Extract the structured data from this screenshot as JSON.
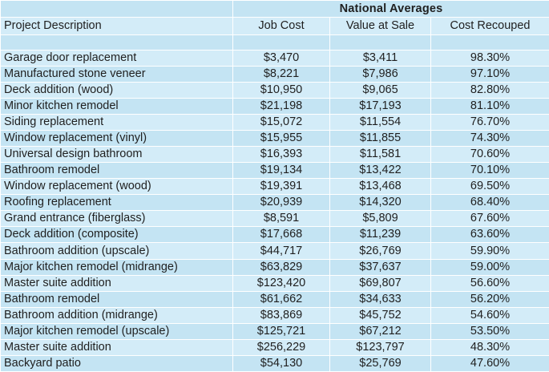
{
  "header": {
    "group_title": "National Averages",
    "columns": {
      "project": "Project Description",
      "job_cost": "Job Cost",
      "value_at_sale": "Value at Sale",
      "cost_recouped": "Cost Recouped"
    }
  },
  "rows": [
    {
      "project": "Garage door replacement",
      "job_cost": "$3,470",
      "value_at_sale": "$3,411",
      "cost_recouped": "98.30%"
    },
    {
      "project": "Manufactured stone veneer",
      "job_cost": "$8,221",
      "value_at_sale": "$7,986",
      "cost_recouped": "97.10%"
    },
    {
      "project": "Deck addition (wood)",
      "job_cost": "$10,950",
      "value_at_sale": "$9,065",
      "cost_recouped": "82.80%"
    },
    {
      "project": "Minor kitchen remodel",
      "job_cost": "$21,198",
      "value_at_sale": "$17,193",
      "cost_recouped": "81.10%"
    },
    {
      "project": "Siding replacement",
      "job_cost": "$15,072",
      "value_at_sale": "$11,554",
      "cost_recouped": "76.70%"
    },
    {
      "project": "Window replacement (vinyl)",
      "job_cost": "$15,955",
      "value_at_sale": "$11,855",
      "cost_recouped": "74.30%"
    },
    {
      "project": "Universal design bathroom",
      "job_cost": "$16,393",
      "value_at_sale": "$11,581",
      "cost_recouped": "70.60%"
    },
    {
      "project": "Bathroom remodel",
      "job_cost": "$19,134",
      "value_at_sale": "$13,422",
      "cost_recouped": "70.10%"
    },
    {
      "project": "Window replacement (wood)",
      "job_cost": "$19,391",
      "value_at_sale": "$13,468",
      "cost_recouped": "69.50%"
    },
    {
      "project": "Roofing replacement",
      "job_cost": "$20,939",
      "value_at_sale": "$14,320",
      "cost_recouped": "68.40%"
    },
    {
      "project": "Grand entrance (fiberglass)",
      "job_cost": "$8,591",
      "value_at_sale": "$5,809",
      "cost_recouped": "67.60%"
    },
    {
      "project": "Deck addition (composite)",
      "job_cost": "$17,668",
      "value_at_sale": "$11,239",
      "cost_recouped": "63.60%"
    },
    {
      "project": "Bathroom addition (upscale)",
      "job_cost": "$44,717",
      "value_at_sale": "$26,769",
      "cost_recouped": "59.90%"
    },
    {
      "project": "Major kitchen remodel (midrange)",
      "job_cost": "$63,829",
      "value_at_sale": "$37,637",
      "cost_recouped": "59.00%"
    },
    {
      "project": "Master suite addition",
      "job_cost": "$123,420",
      "value_at_sale": "$69,807",
      "cost_recouped": "56.60%"
    },
    {
      "project": "Bathroom remodel",
      "job_cost": "$61,662",
      "value_at_sale": "$34,633",
      "cost_recouped": "56.20%"
    },
    {
      "project": "Bathroom addition (midrange)",
      "job_cost": "$83,869",
      "value_at_sale": "$45,752",
      "cost_recouped": "54.60%"
    },
    {
      "project": "Major kitchen remodel (upscale)",
      "job_cost": "$125,721",
      "value_at_sale": "$67,212",
      "cost_recouped": "53.50%"
    },
    {
      "project": "Master suite addition",
      "job_cost": "$256,229",
      "value_at_sale": "$123,797",
      "cost_recouped": "48.30%"
    },
    {
      "project": "Backyard patio",
      "job_cost": "$54,130",
      "value_at_sale": "$25,769",
      "cost_recouped": "47.60%"
    }
  ]
}
